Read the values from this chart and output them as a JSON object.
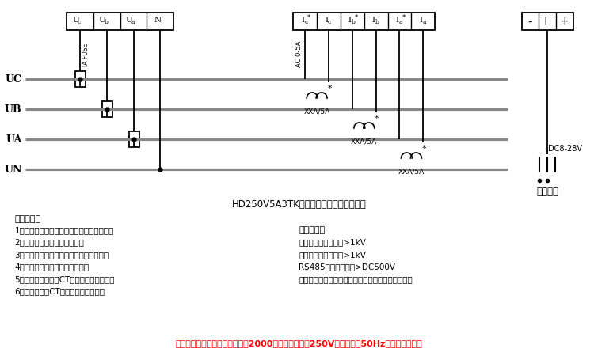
{
  "bg_color": "#ffffff",
  "line_color": "#000000",
  "wire_color": "#888888",
  "title": "HD250V5A3TK三相电参数采集模块接线图",
  "bus_labels": [
    "UC",
    "UB",
    "UA",
    "UN"
  ],
  "ct_label": "XXA/5A",
  "ac_label": "AC 0-5A",
  "dc_label": "DC8-28V",
  "aux_label": "辅助电源",
  "fuse_label": "IA FUSE",
  "safety_title": "安全须知：",
  "safety_items": [
    "1、接线前必须切断电源，并确定其不带电。",
    "2、模块接地端必须可靠接地。",
    "3、由具有专业资质的人员进行接线安装。",
    "4、所加信号不要超过设备量程。",
    "5、在任何情况下，CT回路都不允许开路。",
    "6、实际应用中CT的一端应连接大地。"
  ],
  "right_title": "隔离耐压：",
  "right_items": [
    "电压测量输入对地：>1kV",
    "电流测量输入对地：>1kV",
    "RS485接口对地　：>DC500V",
    "辅助电源输入对地：接地端和辅助电源负极内部相连"
  ],
  "warning_text": "警告：本模块仅适用于海拔低于2000米，相电压小于250V、额定频率50Hz的交流系统使用"
}
